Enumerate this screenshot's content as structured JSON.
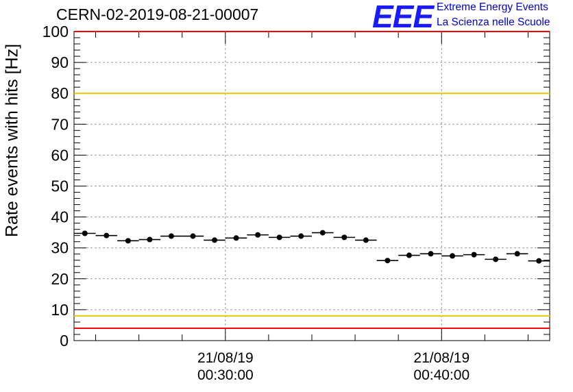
{
  "chart_data": {
    "type": "scatter",
    "title": "CERN-02-2019-08-21-00007",
    "ylabel": "Rate events with hits [Hz]",
    "xlabel": "",
    "ylim": [
      0,
      100
    ],
    "yticks": [
      0,
      10,
      20,
      30,
      40,
      50,
      60,
      70,
      80,
      90,
      100
    ],
    "xlim": [
      "21/08/19 00:23:00",
      "21/08/19 00:45:00"
    ],
    "xtick_labels": [
      {
        "date": "21/08/19",
        "time": "00:30:00"
      },
      {
        "date": "21/08/19",
        "time": "00:40:00"
      }
    ],
    "grid": true,
    "series": [
      {
        "x": [
          "00:23:30",
          "00:24:30",
          "00:25:30",
          "00:26:30",
          "00:27:30",
          "00:28:30",
          "00:29:30",
          "00:30:30",
          "00:31:30",
          "00:32:30",
          "00:33:30",
          "00:34:30",
          "00:35:30",
          "00:36:30",
          "00:37:30",
          "00:38:30",
          "00:39:30",
          "00:40:30",
          "00:41:30",
          "00:42:30",
          "00:43:30",
          "00:44:30"
        ],
        "values": [
          34.7,
          34.0,
          32.3,
          32.7,
          33.8,
          33.8,
          32.5,
          33.2,
          34.2,
          33.4,
          33.8,
          34.9,
          33.4,
          32.5,
          25.9,
          27.6,
          28.1,
          27.4,
          27.8,
          26.3,
          28.1,
          25.8
        ]
      }
    ],
    "reference_lines": [
      {
        "y": 100,
        "color": "#ff0000"
      },
      {
        "y": 80,
        "color": "#e6c800"
      },
      {
        "y": 8,
        "color": "#e6c800"
      },
      {
        "y": 4,
        "color": "#ff0000"
      }
    ]
  },
  "logo": {
    "mark": "EEE",
    "line1": "Extreme Energy Events",
    "line2": "La Scienza nelle Scuole"
  },
  "colors": {
    "marker": "#000000",
    "grid": "#999999",
    "logo": "#1a1aff"
  }
}
